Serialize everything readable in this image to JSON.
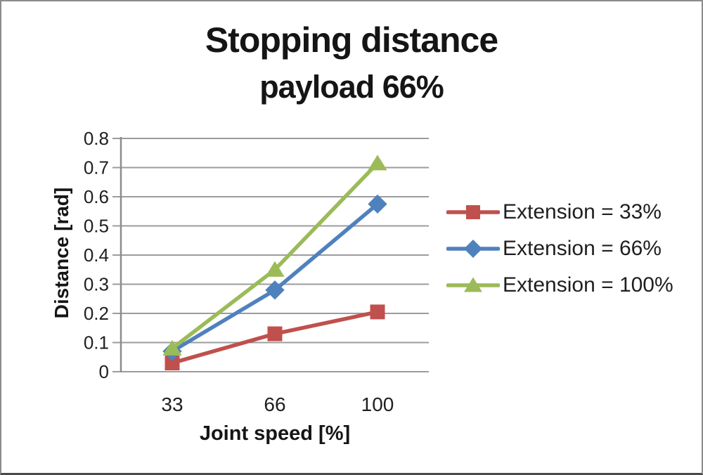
{
  "window": {
    "background": "#ffffff",
    "border_color": "#8c8c8c"
  },
  "chart_data": {
    "type": "line",
    "title": "Stopping distance",
    "subtitle": "payload 66%",
    "xlabel": "Joint speed [%]",
    "ylabel": "Distance [rad]",
    "categories": [
      "33",
      "66",
      "100"
    ],
    "x_values": [
      33,
      66,
      100
    ],
    "ylim": [
      0,
      0.8
    ],
    "ytick_values": [
      0,
      0.1,
      0.2,
      0.3,
      0.4,
      0.5,
      0.6,
      0.7,
      0.8
    ],
    "ytick_labels": [
      "0",
      "0.1",
      "0.2",
      "0.3",
      "0.4",
      "0.5",
      "0.6",
      "0.7",
      "0.8"
    ],
    "grid": true,
    "legend_position": "right",
    "gridline_color": "#9c9c9c",
    "axis_color": "#8c8c8c",
    "text_color": "#1f1f1f",
    "series": [
      {
        "name": "Extension = 33%",
        "color": "#C0504D",
        "marker": "square",
        "values": [
          0.03,
          0.13,
          0.205
        ]
      },
      {
        "name": "Extension = 66%",
        "color": "#4F81BD",
        "marker": "diamond",
        "values": [
          0.07,
          0.28,
          0.575
        ]
      },
      {
        "name": "Extension = 100%",
        "color": "#9BBB59",
        "marker": "triangle",
        "values": [
          0.08,
          0.35,
          0.715
        ]
      }
    ]
  }
}
